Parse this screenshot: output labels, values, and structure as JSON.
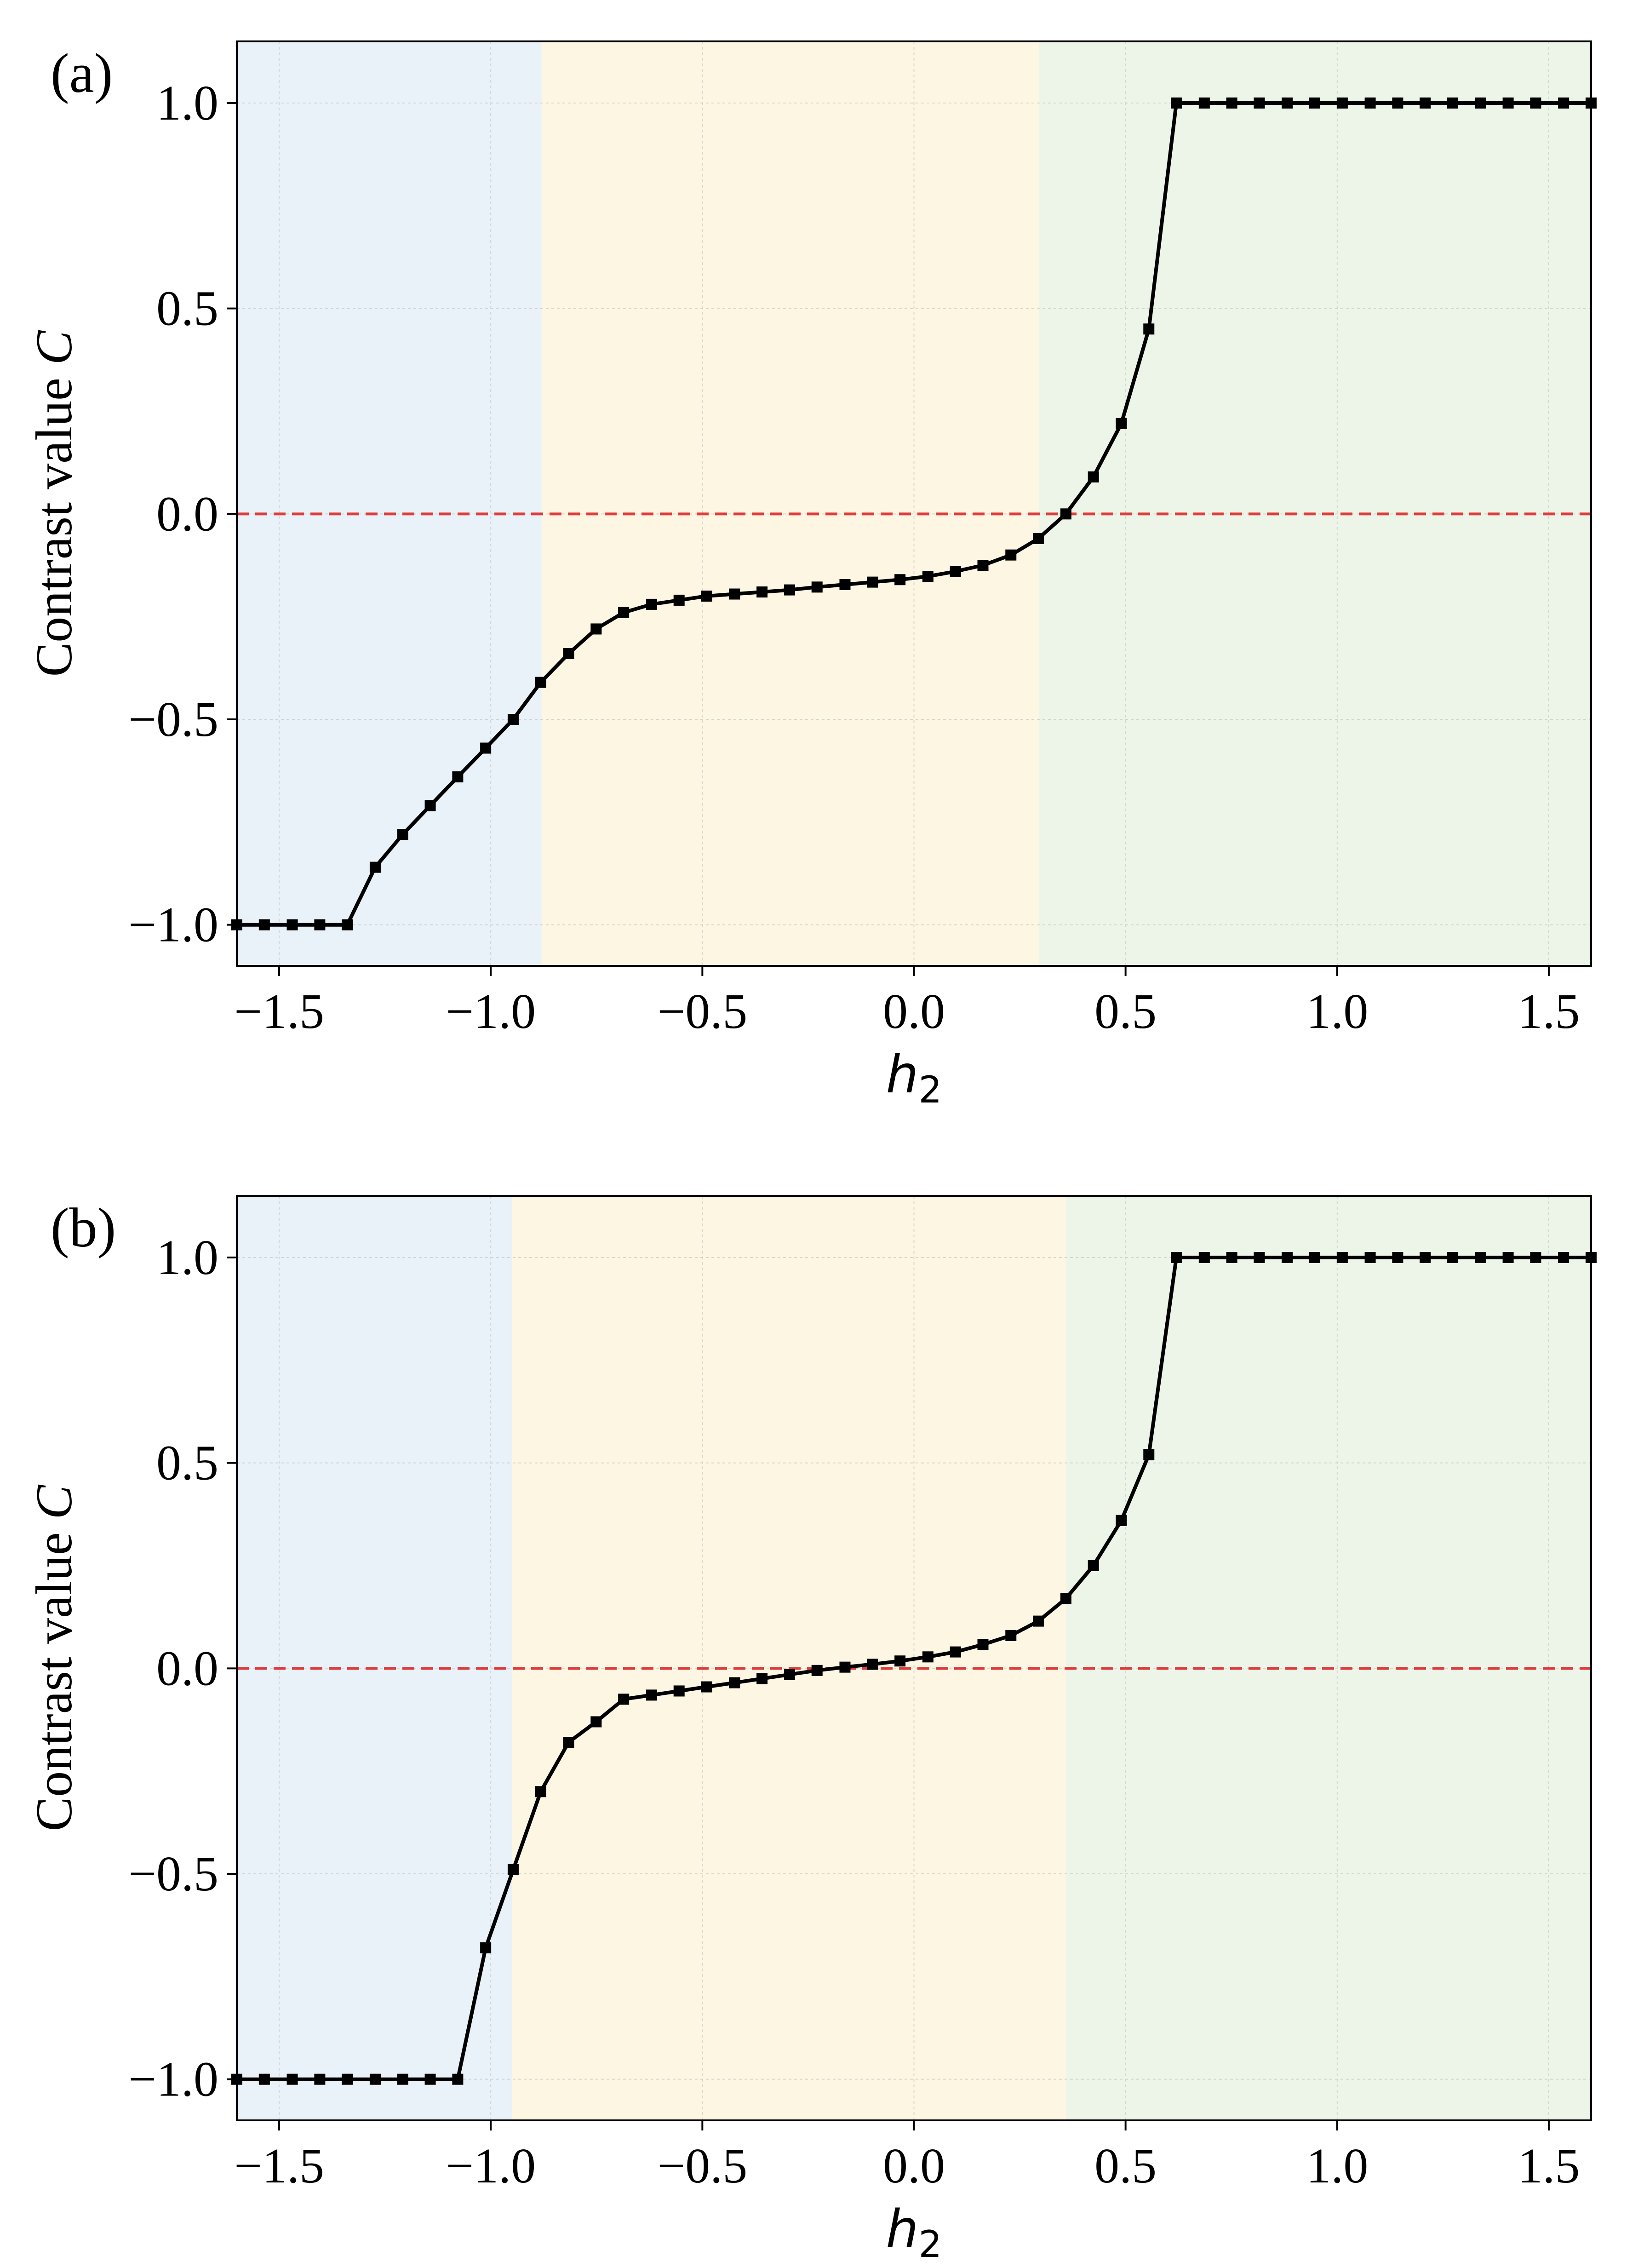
{
  "chart_data": [
    {
      "panel_label": "(a)",
      "type": "line",
      "xlabel": "h",
      "xlabel_sub": "2",
      "ylabel": "Contrast value ",
      "ylabel_symbol": "C",
      "xlim": [
        -1.6,
        1.6
      ],
      "ylim": [
        -1.1,
        1.15
      ],
      "xticks": [
        -1.5,
        -1.0,
        -0.5,
        0.0,
        0.5,
        1.0,
        1.5
      ],
      "xtick_labels": [
        "−1.5",
        "−1.0",
        "−0.5",
        "0.0",
        "0.5",
        "1.0",
        "1.5"
      ],
      "yticks": [
        -1.0,
        -0.5,
        0.0,
        0.5,
        1.0
      ],
      "ytick_labels": [
        "−1.0",
        "−0.5",
        "0.0",
        "0.5",
        "1.0"
      ],
      "grid": true,
      "regions": [
        {
          "from": -1.6,
          "to": -0.88,
          "color": "#e9f1f9"
        },
        {
          "from": -0.88,
          "to": 0.295,
          "color": "#fdf6e2"
        },
        {
          "from": 0.295,
          "to": 1.6,
          "color": "#edf5e9"
        }
      ],
      "reference_line": {
        "y": 0.0,
        "color": "#e03c3c",
        "style": "dashed"
      },
      "series": [
        {
          "color": "#000000",
          "marker": "square",
          "x": [
            -1.6,
            -1.535,
            -1.469,
            -1.404,
            -1.339,
            -1.273,
            -1.208,
            -1.143,
            -1.078,
            -1.012,
            -0.947,
            -0.882,
            -0.816,
            -0.751,
            -0.686,
            -0.62,
            -0.555,
            -0.49,
            -0.424,
            -0.359,
            -0.294,
            -0.229,
            -0.163,
            -0.098,
            -0.033,
            0.033,
            0.098,
            0.163,
            0.229,
            0.294,
            0.359,
            0.424,
            0.49,
            0.555,
            0.62,
            0.686,
            0.751,
            0.816,
            0.882,
            0.947,
            1.012,
            1.078,
            1.143,
            1.208,
            1.273,
            1.339,
            1.404,
            1.469,
            1.535,
            1.6
          ],
          "y": [
            -1.0,
            -1.0,
            -1.0,
            -1.0,
            -1.0,
            -0.86,
            -0.78,
            -0.71,
            -0.64,
            -0.57,
            -0.5,
            -0.41,
            -0.34,
            -0.28,
            -0.24,
            -0.22,
            -0.21,
            -0.2,
            -0.195,
            -0.19,
            -0.185,
            -0.178,
            -0.172,
            -0.166,
            -0.16,
            -0.152,
            -0.14,
            -0.125,
            -0.1,
            -0.06,
            0.0,
            0.09,
            0.22,
            0.45,
            1.0,
            1.0,
            1.0,
            1.0,
            1.0,
            1.0,
            1.0,
            1.0,
            1.0,
            1.0,
            1.0,
            1.0,
            1.0,
            1.0,
            1.0,
            1.0
          ]
        }
      ]
    },
    {
      "panel_label": "(b)",
      "type": "line",
      "xlabel": "h",
      "xlabel_sub": "2",
      "ylabel": "Contrast value ",
      "ylabel_symbol": "C",
      "xlim": [
        -1.6,
        1.6
      ],
      "ylim": [
        -1.1,
        1.15
      ],
      "xticks": [
        -1.5,
        -1.0,
        -0.5,
        0.0,
        0.5,
        1.0,
        1.5
      ],
      "xtick_labels": [
        "−1.5",
        "−1.0",
        "−0.5",
        "0.0",
        "0.5",
        "1.0",
        "1.5"
      ],
      "yticks": [
        -1.0,
        -0.5,
        0.0,
        0.5,
        1.0
      ],
      "ytick_labels": [
        "−1.0",
        "−0.5",
        "0.0",
        "0.5",
        "1.0"
      ],
      "grid": true,
      "regions": [
        {
          "from": -1.6,
          "to": -0.95,
          "color": "#e9f1f9"
        },
        {
          "from": -0.95,
          "to": 0.36,
          "color": "#fdf6e2"
        },
        {
          "from": 0.36,
          "to": 1.6,
          "color": "#edf5e9"
        }
      ],
      "reference_line": {
        "y": 0.0,
        "color": "#e03c3c",
        "style": "dashed"
      },
      "series": [
        {
          "color": "#000000",
          "marker": "square",
          "x": [
            -1.6,
            -1.535,
            -1.469,
            -1.404,
            -1.339,
            -1.273,
            -1.208,
            -1.143,
            -1.078,
            -1.012,
            -0.947,
            -0.882,
            -0.816,
            -0.751,
            -0.686,
            -0.62,
            -0.555,
            -0.49,
            -0.424,
            -0.359,
            -0.294,
            -0.229,
            -0.163,
            -0.098,
            -0.033,
            0.033,
            0.098,
            0.163,
            0.229,
            0.294,
            0.359,
            0.424,
            0.49,
            0.555,
            0.62,
            0.686,
            0.751,
            0.816,
            0.882,
            0.947,
            1.012,
            1.078,
            1.143,
            1.208,
            1.273,
            1.339,
            1.404,
            1.469,
            1.535,
            1.6
          ],
          "y": [
            -1.0,
            -1.0,
            -1.0,
            -1.0,
            -1.0,
            -1.0,
            -1.0,
            -1.0,
            -1.0,
            -0.68,
            -0.49,
            -0.3,
            -0.18,
            -0.13,
            -0.075,
            -0.065,
            -0.055,
            -0.045,
            -0.035,
            -0.025,
            -0.015,
            -0.005,
            0.003,
            0.01,
            0.018,
            0.028,
            0.04,
            0.058,
            0.08,
            0.115,
            0.17,
            0.25,
            0.36,
            0.52,
            1.0,
            1.0,
            1.0,
            1.0,
            1.0,
            1.0,
            1.0,
            1.0,
            1.0,
            1.0,
            1.0,
            1.0,
            1.0,
            1.0,
            1.0,
            1.0
          ]
        }
      ]
    }
  ]
}
